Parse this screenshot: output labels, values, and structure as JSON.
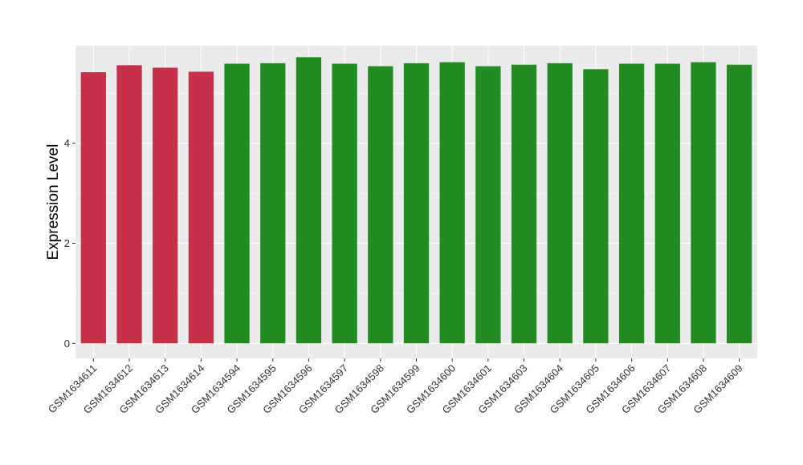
{
  "chart_data": {
    "type": "bar",
    "title": "",
    "xlabel": "",
    "ylabel": "Expression Level",
    "ylim": [
      -0.3,
      5.95
    ],
    "yticks": [
      0,
      2,
      4
    ],
    "grid": true,
    "legend": "none",
    "categories": [
      "GSM1634611",
      "GSM1634612",
      "GSM1634613",
      "GSM1634614",
      "GSM1634594",
      "GSM1634595",
      "GSM1634596",
      "GSM1634597",
      "GSM1634598",
      "GSM1634599",
      "GSM1634600",
      "GSM1634601",
      "GSM1634603",
      "GSM1634604",
      "GSM1634605",
      "GSM1634606",
      "GSM1634607",
      "GSM1634608",
      "GSM1634609"
    ],
    "values": [
      5.42,
      5.56,
      5.51,
      5.43,
      5.59,
      5.6,
      5.72,
      5.59,
      5.54,
      5.6,
      5.62,
      5.54,
      5.57,
      5.6,
      5.48,
      5.59,
      5.59,
      5.62,
      5.57
    ],
    "groups": [
      "red",
      "red",
      "red",
      "red",
      "green",
      "green",
      "green",
      "green",
      "green",
      "green",
      "green",
      "green",
      "green",
      "green",
      "green",
      "green",
      "green",
      "green",
      "green"
    ],
    "colors": {
      "red": "#c5304a",
      "green": "#228b22",
      "panel": "#ebebeb",
      "grid": "#ffffff"
    }
  }
}
